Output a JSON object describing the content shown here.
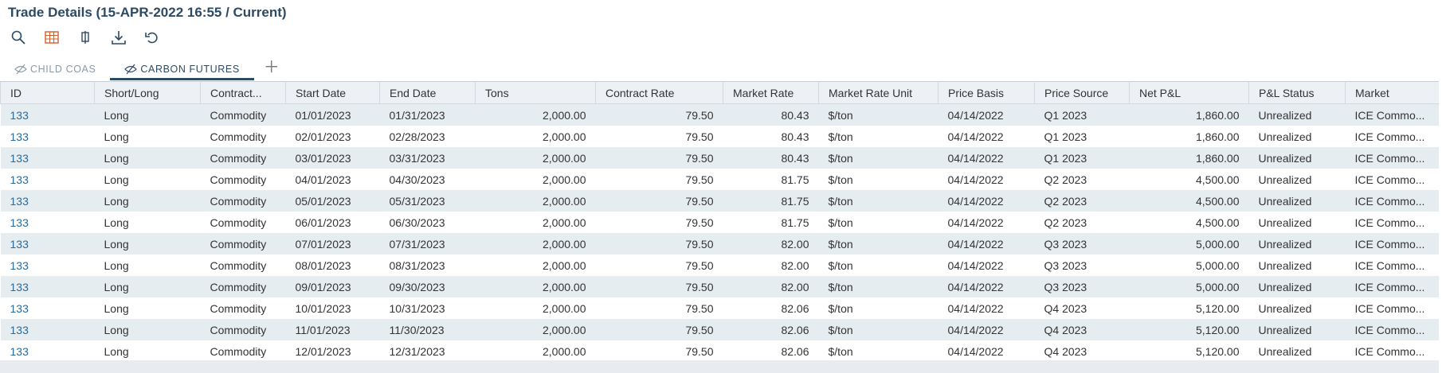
{
  "header": {
    "title": "Trade Details (15-APR-2022 16:55 / Current)"
  },
  "tabs": [
    "CHILD COAS",
    "CARBON FUTURES"
  ],
  "table": {
    "columns": [
      "ID",
      "Short/Long",
      "Contract...",
      "Start Date",
      "End Date",
      "Tons",
      "Contract Rate",
      "Market Rate",
      "Market Rate Unit",
      "Price Basis",
      "Price Source",
      "Net P&L",
      "P&L Status",
      "Market"
    ],
    "rows": [
      [
        "133",
        "Long",
        "Commodity",
        "01/01/2023",
        "01/31/2023",
        "2,000.00",
        "79.50",
        "80.43",
        "$/ton",
        "04/14/2022",
        "Q1 2023",
        "1,860.00",
        "Unrealized",
        "ICE Commo..."
      ],
      [
        "133",
        "Long",
        "Commodity",
        "02/01/2023",
        "02/28/2023",
        "2,000.00",
        "79.50",
        "80.43",
        "$/ton",
        "04/14/2022",
        "Q1 2023",
        "1,860.00",
        "Unrealized",
        "ICE Commo..."
      ],
      [
        "133",
        "Long",
        "Commodity",
        "03/01/2023",
        "03/31/2023",
        "2,000.00",
        "79.50",
        "80.43",
        "$/ton",
        "04/14/2022",
        "Q1 2023",
        "1,860.00",
        "Unrealized",
        "ICE Commo..."
      ],
      [
        "133",
        "Long",
        "Commodity",
        "04/01/2023",
        "04/30/2023",
        "2,000.00",
        "79.50",
        "81.75",
        "$/ton",
        "04/14/2022",
        "Q2 2023",
        "4,500.00",
        "Unrealized",
        "ICE Commo..."
      ],
      [
        "133",
        "Long",
        "Commodity",
        "05/01/2023",
        "05/31/2023",
        "2,000.00",
        "79.50",
        "81.75",
        "$/ton",
        "04/14/2022",
        "Q2 2023",
        "4,500.00",
        "Unrealized",
        "ICE Commo..."
      ],
      [
        "133",
        "Long",
        "Commodity",
        "06/01/2023",
        "06/30/2023",
        "2,000.00",
        "79.50",
        "81.75",
        "$/ton",
        "04/14/2022",
        "Q2 2023",
        "4,500.00",
        "Unrealized",
        "ICE Commo..."
      ],
      [
        "133",
        "Long",
        "Commodity",
        "07/01/2023",
        "07/31/2023",
        "2,000.00",
        "79.50",
        "82.00",
        "$/ton",
        "04/14/2022",
        "Q3 2023",
        "5,000.00",
        "Unrealized",
        "ICE Commo..."
      ],
      [
        "133",
        "Long",
        "Commodity",
        "08/01/2023",
        "08/31/2023",
        "2,000.00",
        "79.50",
        "82.00",
        "$/ton",
        "04/14/2022",
        "Q3 2023",
        "5,000.00",
        "Unrealized",
        "ICE Commo..."
      ],
      [
        "133",
        "Long",
        "Commodity",
        "09/01/2023",
        "09/30/2023",
        "2,000.00",
        "79.50",
        "82.00",
        "$/ton",
        "04/14/2022",
        "Q3 2023",
        "5,000.00",
        "Unrealized",
        "ICE Commo..."
      ],
      [
        "133",
        "Long",
        "Commodity",
        "10/01/2023",
        "10/31/2023",
        "2,000.00",
        "79.50",
        "82.06",
        "$/ton",
        "04/14/2022",
        "Q4 2023",
        "5,120.00",
        "Unrealized",
        "ICE Commo..."
      ],
      [
        "133",
        "Long",
        "Commodity",
        "11/01/2023",
        "11/30/2023",
        "2,000.00",
        "79.50",
        "82.06",
        "$/ton",
        "04/14/2022",
        "Q4 2023",
        "5,120.00",
        "Unrealized",
        "ICE Commo..."
      ],
      [
        "133",
        "Long",
        "Commodity",
        "12/01/2023",
        "12/31/2023",
        "2,000.00",
        "79.50",
        "82.06",
        "$/ton",
        "04/14/2022",
        "Q4 2023",
        "5,120.00",
        "Unrealized",
        "ICE Commo..."
      ]
    ]
  }
}
